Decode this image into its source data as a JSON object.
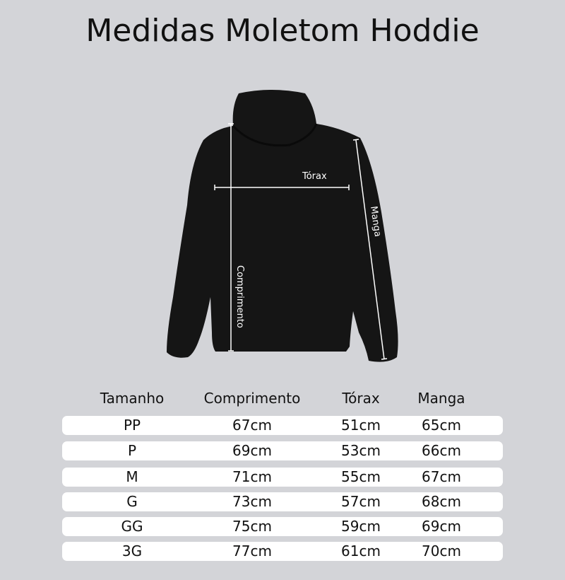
{
  "title": "Medidas Moletom Hoddie",
  "illustration": {
    "garment_color": "#151515",
    "labels": {
      "torax": "Tórax",
      "manga": "Manga",
      "comprimento": "Comprimento"
    }
  },
  "table": {
    "headers": [
      "Tamanho",
      "Comprimento",
      "Tórax",
      "Manga"
    ],
    "rows": [
      [
        "PP",
        "67cm",
        "51cm",
        "65cm"
      ],
      [
        "P",
        "69cm",
        "53cm",
        "66cm"
      ],
      [
        "M",
        "71cm",
        "55cm",
        "67cm"
      ],
      [
        "G",
        "73cm",
        "57cm",
        "68cm"
      ],
      [
        "GG",
        "75cm",
        "59cm",
        "69cm"
      ],
      [
        "3G",
        "77cm",
        "61cm",
        "70cm"
      ]
    ]
  }
}
